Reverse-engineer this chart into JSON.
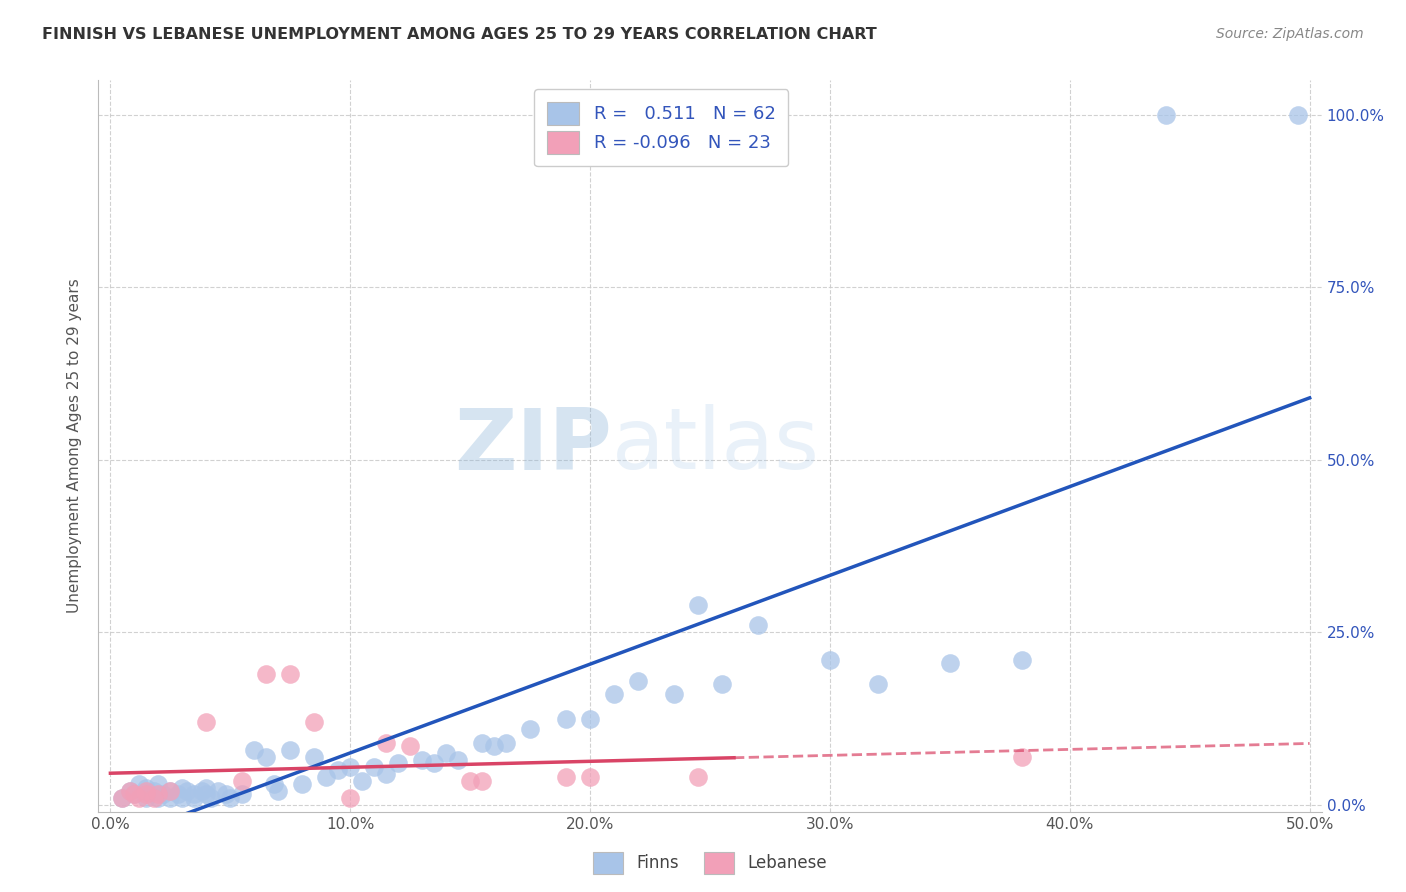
{
  "title": "FINNISH VS LEBANESE UNEMPLOYMENT AMONG AGES 25 TO 29 YEARS CORRELATION CHART",
  "source": "Source: ZipAtlas.com",
  "ylabel": "Unemployment Among Ages 25 to 29 years",
  "xlim": [
    -0.005,
    0.505
  ],
  "ylim": [
    -0.01,
    1.05
  ],
  "xtick_labels": [
    "0.0%",
    "10.0%",
    "20.0%",
    "30.0%",
    "40.0%",
    "50.0%"
  ],
  "xtick_vals": [
    0.0,
    0.1,
    0.2,
    0.3,
    0.4,
    0.5
  ],
  "ytick_vals": [
    0.0,
    0.25,
    0.5,
    0.75,
    1.0
  ],
  "ytick_labels_right": [
    "0.0%",
    "25.0%",
    "50.0%",
    "75.0%",
    "100.0%"
  ],
  "finns_R": "0.511",
  "finns_N": "62",
  "lebanese_R": "-0.096",
  "lebanese_N": "23",
  "legend_text_color": "#3355bb",
  "finn_color": "#a8c4e8",
  "lebanese_color": "#f2a0b8",
  "finn_line_color": "#2255bb",
  "lebanese_line_color": "#d94466",
  "watermark_zip": "ZIP",
  "watermark_atlas": "atlas",
  "finn_scatter_x": [
    0.005,
    0.008,
    0.01,
    0.012,
    0.015,
    0.015,
    0.018,
    0.02,
    0.02,
    0.022,
    0.025,
    0.025,
    0.028,
    0.03,
    0.03,
    0.032,
    0.035,
    0.035,
    0.038,
    0.04,
    0.04,
    0.042,
    0.045,
    0.048,
    0.05,
    0.055,
    0.06,
    0.065,
    0.068,
    0.07,
    0.075,
    0.08,
    0.085,
    0.09,
    0.095,
    0.1,
    0.105,
    0.11,
    0.115,
    0.12,
    0.13,
    0.135,
    0.14,
    0.145,
    0.155,
    0.16,
    0.165,
    0.175,
    0.19,
    0.2,
    0.21,
    0.22,
    0.235,
    0.245,
    0.255,
    0.27,
    0.3,
    0.32,
    0.35,
    0.38,
    0.44,
    0.495
  ],
  "finn_scatter_y": [
    0.01,
    0.02,
    0.015,
    0.03,
    0.01,
    0.025,
    0.02,
    0.01,
    0.03,
    0.015,
    0.02,
    0.01,
    0.015,
    0.01,
    0.025,
    0.02,
    0.01,
    0.015,
    0.02,
    0.015,
    0.025,
    0.01,
    0.02,
    0.015,
    0.01,
    0.015,
    0.08,
    0.07,
    0.03,
    0.02,
    0.08,
    0.03,
    0.07,
    0.04,
    0.05,
    0.055,
    0.035,
    0.055,
    0.045,
    0.06,
    0.065,
    0.06,
    0.075,
    0.065,
    0.09,
    0.085,
    0.09,
    0.11,
    0.125,
    0.125,
    0.16,
    0.18,
    0.16,
    0.29,
    0.175,
    0.26,
    0.21,
    0.175,
    0.205,
    0.21,
    1.0,
    1.0
  ],
  "lebanese_scatter_x": [
    0.005,
    0.008,
    0.01,
    0.012,
    0.015,
    0.015,
    0.018,
    0.02,
    0.025,
    0.04,
    0.055,
    0.065,
    0.075,
    0.085,
    0.1,
    0.115,
    0.125,
    0.15,
    0.155,
    0.19,
    0.2,
    0.245,
    0.38
  ],
  "lebanese_scatter_y": [
    0.01,
    0.02,
    0.015,
    0.01,
    0.015,
    0.02,
    0.01,
    0.015,
    0.02,
    0.12,
    0.035,
    0.19,
    0.19,
    0.12,
    0.01,
    0.09,
    0.085,
    0.035,
    0.035,
    0.04,
    0.04,
    0.04,
    0.07
  ]
}
